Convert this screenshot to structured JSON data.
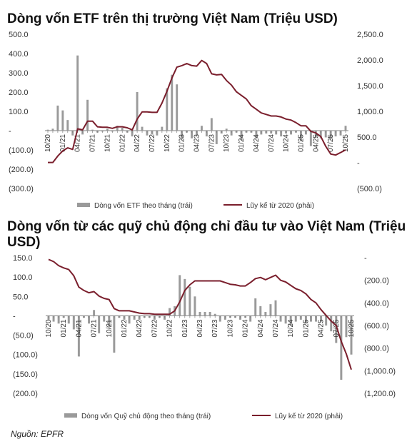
{
  "chart_data": [
    {
      "type": "bar",
      "title": "Dòng vốn ETF trên thị trường Việt Nam (Triệu USD)",
      "x": [
        "10/20",
        "11/20",
        "12/20",
        "01/21",
        "02/21",
        "03/21",
        "04/21",
        "05/21",
        "06/21",
        "07/21",
        "08/21",
        "09/21",
        "10/21",
        "11/21",
        "12/21",
        "01/22",
        "02/22",
        "03/22",
        "04/22",
        "05/22",
        "06/22",
        "07/22",
        "08/22",
        "09/22",
        "10/22",
        "11/22",
        "12/22",
        "01/23",
        "02/23",
        "03/23",
        "04/23",
        "05/23",
        "06/23",
        "07/23",
        "08/23",
        "09/23",
        "10/23",
        "11/23",
        "12/23",
        "01/24",
        "02/24",
        "03/24",
        "04/24",
        "05/24",
        "06/24",
        "07/24",
        "08/24",
        "09/24",
        "10/24",
        "11/24",
        "12/24",
        "01/25",
        "02/25",
        "03/25",
        "04/25",
        "05/25",
        "06/25",
        "07/25",
        "08/25",
        "09/25",
        "10/25"
      ],
      "x_tick_labels": [
        "10/20",
        "01/21",
        "04/21",
        "07/21",
        "10/21",
        "01/22",
        "04/22",
        "07/22",
        "10/22",
        "01/23",
        "04/23",
        "07/23",
        "10/23",
        "01/24",
        "04/24",
        "07/24",
        "10/24",
        "01/25",
        "04/25",
        "07/25",
        "10/25"
      ],
      "left_ticks": [
        "500.0",
        "400.0",
        "300.0",
        "200.0",
        "100.0",
        "-",
        "(100.0)",
        "(200.0)",
        "(300.0)"
      ],
      "right_ticks": [
        "2,500.0",
        "2,000.0",
        "1,500.0",
        "1,000.0",
        "500.0",
        "-",
        "(500.0)"
      ],
      "ylim_left": [
        -300,
        500
      ],
      "ylim_right": [
        -500,
        2500
      ],
      "series": [
        {
          "name": "Dòng vốn ETF theo tháng (trái)",
          "kind": "bar",
          "axis": "left",
          "color": "#9a9a9a",
          "values": [
            5,
            10,
            130,
            105,
            55,
            -25,
            390,
            -20,
            160,
            5,
            -10,
            -5,
            10,
            -5,
            25,
            15,
            -10,
            -30,
            200,
            20,
            -25,
            -20,
            -25,
            20,
            220,
            290,
            240,
            -45,
            -10,
            -40,
            -25,
            25,
            -30,
            65,
            -70,
            -15,
            10,
            -25,
            -10,
            -50,
            -10,
            -10,
            -40,
            -20,
            -15,
            -15,
            -20,
            -30,
            -15,
            -20,
            -10,
            -55,
            -20,
            -80,
            -35,
            -40,
            -35,
            -45,
            -30,
            -25,
            25
          ]
        },
        {
          "name": "Lũy kế từ 2020 (phải)",
          "kind": "line",
          "axis": "right",
          "color": "#7a1e2c",
          "values": [
            5,
            5,
            130,
            230,
            290,
            260,
            660,
            640,
            810,
            810,
            700,
            690,
            690,
            670,
            700,
            700,
            680,
            640,
            850,
            990,
            990,
            980,
            980,
            1160,
            1390,
            1650,
            1860,
            1890,
            1930,
            1890,
            1880,
            1990,
            1930,
            1730,
            1710,
            1720,
            1600,
            1510,
            1380,
            1310,
            1240,
            1110,
            1040,
            970,
            940,
            910,
            910,
            890,
            850,
            830,
            780,
            720,
            720,
            610,
            580,
            510,
            320,
            170,
            150,
            200,
            250
          ]
        }
      ]
    },
    {
      "type": "bar",
      "title": "Dòng vốn từ các quỹ chủ động chỉ đầu tư vào Việt Nam (Triệu USD)",
      "x": [
        "10/20",
        "11/20",
        "12/20",
        "01/21",
        "02/21",
        "03/21",
        "04/21",
        "05/21",
        "06/21",
        "07/21",
        "08/21",
        "09/21",
        "10/21",
        "11/21",
        "12/21",
        "01/22",
        "02/22",
        "03/22",
        "04/22",
        "05/22",
        "06/22",
        "07/22",
        "08/22",
        "09/22",
        "10/22",
        "11/22",
        "12/22",
        "01/23",
        "02/23",
        "03/23",
        "04/23",
        "05/23",
        "06/23",
        "07/23",
        "08/23",
        "09/23",
        "10/23",
        "11/23",
        "12/23",
        "01/24",
        "02/24",
        "03/24",
        "04/24",
        "05/24",
        "06/24",
        "07/24",
        "08/24",
        "09/24",
        "10/24",
        "11/24",
        "12/24",
        "01/25",
        "02/25",
        "03/25",
        "04/25",
        "05/25",
        "06/25",
        "07/25",
        "08/25",
        "09/25",
        "10/25"
      ],
      "x_tick_labels": [
        "10/20",
        "01/21",
        "04/21",
        "07/21",
        "10/21",
        "01/22",
        "04/22",
        "07/22",
        "10/22",
        "01/23",
        "04/23",
        "07/23",
        "10/23",
        "01/24",
        "04/24",
        "07/24",
        "10/24",
        "01/25",
        "04/25",
        "07/25",
        "10/25"
      ],
      "left_ticks": [
        "150.0",
        "100.0",
        "50.0",
        "-",
        "(50.0)",
        "(100.0)",
        "(150.0)",
        "(200.0)"
      ],
      "right_ticks": [
        "-",
        "(200.0)",
        "(400.0)",
        "(600.0)",
        "(800.0)",
        "(1,000.0)",
        "(1,200.0)"
      ],
      "ylim_left": [
        -200,
        150
      ],
      "ylim_right": [
        -1200,
        0
      ],
      "series": [
        {
          "name": "Dòng vốn Quỹ chủ động theo tháng (trái)",
          "kind": "bar",
          "axis": "left",
          "color": "#9a9a9a",
          "values": [
            -10,
            -15,
            -20,
            -5,
            -20,
            -35,
            -105,
            -5,
            -20,
            15,
            -45,
            -15,
            -30,
            -95,
            -5,
            -10,
            -20,
            -10,
            -10,
            -5,
            -5,
            -10,
            -5,
            -10,
            20,
            25,
            105,
            95,
            75,
            50,
            10,
            10,
            10,
            5,
            -15,
            -10,
            -5,
            -5,
            -10,
            -5,
            -15,
            45,
            25,
            10,
            30,
            40,
            -15,
            -20,
            -25,
            -15,
            -10,
            -20,
            -15,
            -15,
            -15,
            -25,
            -40,
            -70,
            -165,
            -55,
            -100
          ]
        },
        {
          "name": "Lũy kế từ 2020 (phải)",
          "kind": "line",
          "axis": "right",
          "color": "#7a1e2c",
          "values": [
            -15,
            -35,
            -70,
            -90,
            -105,
            -160,
            -260,
            -290,
            -310,
            -300,
            -340,
            -360,
            -370,
            -450,
            -470,
            -470,
            -470,
            -480,
            -490,
            -495,
            -495,
            -500,
            -500,
            -500,
            -500,
            -470,
            -390,
            -290,
            -240,
            -205,
            -205,
            -205,
            -205,
            -205,
            -205,
            -220,
            -235,
            -240,
            -250,
            -250,
            -220,
            -185,
            -175,
            -195,
            -175,
            -155,
            -200,
            -215,
            -245,
            -275,
            -290,
            -320,
            -370,
            -400,
            -460,
            -510,
            -560,
            -600,
            -740,
            -850,
            -990
          ]
        }
      ]
    }
  ],
  "legends": {
    "chart1_bar": "Dòng vốn ETF theo tháng (trái)",
    "chart1_line": "Lũy kế từ 2020 (phải)",
    "chart2_bar": "Dòng vốn Quỹ chủ động theo tháng (trái)",
    "chart2_line": "Lũy kế từ 2020 (phải)"
  },
  "source": "Nguồn: EPFR"
}
